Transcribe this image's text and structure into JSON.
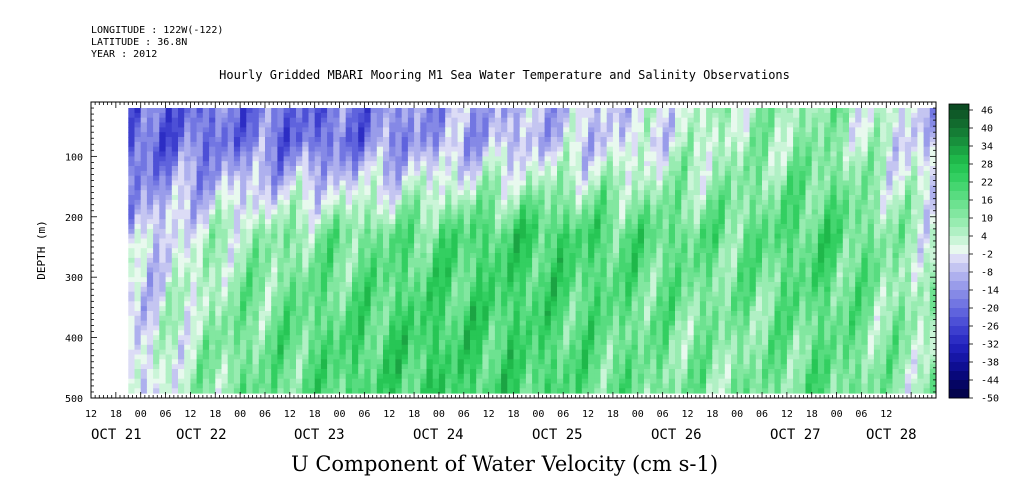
{
  "header": {
    "longitude": "LONGITUDE : 122W(-122)",
    "latitude": "LATITUDE : 36.8N",
    "year": "YEAR : 2012"
  },
  "title": "Hourly Gridded MBARI Mooring M1 Sea Water Temperature and Salinity Observations",
  "chart_data": {
    "type": "heatmap",
    "title": "Hourly Gridded MBARI Mooring M1 Sea Water Temperature and Salinity Observations",
    "xlabel": "",
    "ylabel": "DEPTH (m)",
    "bottom_label": "U Component of Water Velocity (cm s-1)",
    "x_axis": {
      "unit": "hours since OCT 21 00",
      "range_hours": [
        -12,
        192
      ],
      "hour_tick_labels": [
        "12",
        "18",
        "00",
        "06",
        "12",
        "18",
        "00",
        "06",
        "12",
        "18",
        "00",
        "06",
        "12",
        "18",
        "00",
        "06",
        "12",
        "18",
        "00",
        "06",
        "12",
        "18",
        "00",
        "06",
        "12",
        "18",
        "00",
        "06",
        "12",
        "18",
        "00",
        "06",
        "12"
      ],
      "date_labels": [
        "OCT 21",
        "OCT 22",
        "OCT 23",
        "OCT 24",
        "OCT 25",
        "OCT 26",
        "OCT 27",
        "OCT 28"
      ],
      "data_start_hour": -3
    },
    "y_axis": {
      "range": [
        500,
        10
      ],
      "inverted": true,
      "ticks": [
        100,
        200,
        300,
        400,
        500
      ],
      "tick_labels": [
        "100",
        "200",
        "300",
        "400",
        "500"
      ],
      "data_range": [
        20,
        485
      ]
    },
    "colorbar": {
      "levels": [
        48,
        46,
        43,
        40,
        37,
        34,
        31,
        28,
        25,
        22,
        19,
        16,
        13,
        10,
        7,
        4,
        1,
        -2,
        -5,
        -8,
        -11,
        -14,
        -17,
        -20,
        -23,
        -26,
        -29,
        -32,
        -35,
        -38,
        -41,
        -44,
        -47,
        -50
      ],
      "labels": [
        "46",
        "40",
        "34",
        "28",
        "22",
        "16",
        "10",
        "4",
        "-2",
        "-8",
        "-14",
        "-20",
        "-26",
        "-32",
        "-38",
        "-44",
        "-50"
      ],
      "colors": [
        "#0b4a22",
        "#0f5a28",
        "#126b2e",
        "#157d35",
        "#18903c",
        "#1ba443",
        "#1fb84a",
        "#27c655",
        "#33cf61",
        "#45d670",
        "#58dc80",
        "#6de290",
        "#82e7a0",
        "#98ecb1",
        "#b0f0c4",
        "#cbf5d8",
        "#e8f9ee",
        "#dcdcf6",
        "#c4c5f1",
        "#aeb0ee",
        "#999cea",
        "#8589e6",
        "#7276e2",
        "#5f63dd",
        "#4d50d6",
        "#3c3ece",
        "#2c2dc4",
        "#1f1fb8",
        "#1616a6",
        "#0e0e92",
        "#08087a",
        "#050563",
        "#03034d"
      ]
    },
    "series_summary": [
      {
        "depth_band": "20-120",
        "x_hours": [
          -3,
          21,
          45,
          69,
          93,
          117,
          141,
          165,
          189
        ],
        "u_values": [
          -22,
          -18,
          -20,
          -12,
          -8,
          -4,
          6,
          10,
          -6
        ]
      },
      {
        "depth_band": "150-300",
        "x_hours": [
          -3,
          21,
          45,
          69,
          93,
          117,
          141,
          165,
          189
        ],
        "u_values": [
          -8,
          6,
          12,
          16,
          22,
          18,
          14,
          20,
          4
        ]
      },
      {
        "depth_band": "300-485",
        "x_hours": [
          -3,
          21,
          45,
          69,
          93,
          117,
          141,
          165,
          189
        ],
        "u_values": [
          -4,
          12,
          18,
          22,
          20,
          14,
          10,
          16,
          6
        ]
      }
    ]
  }
}
